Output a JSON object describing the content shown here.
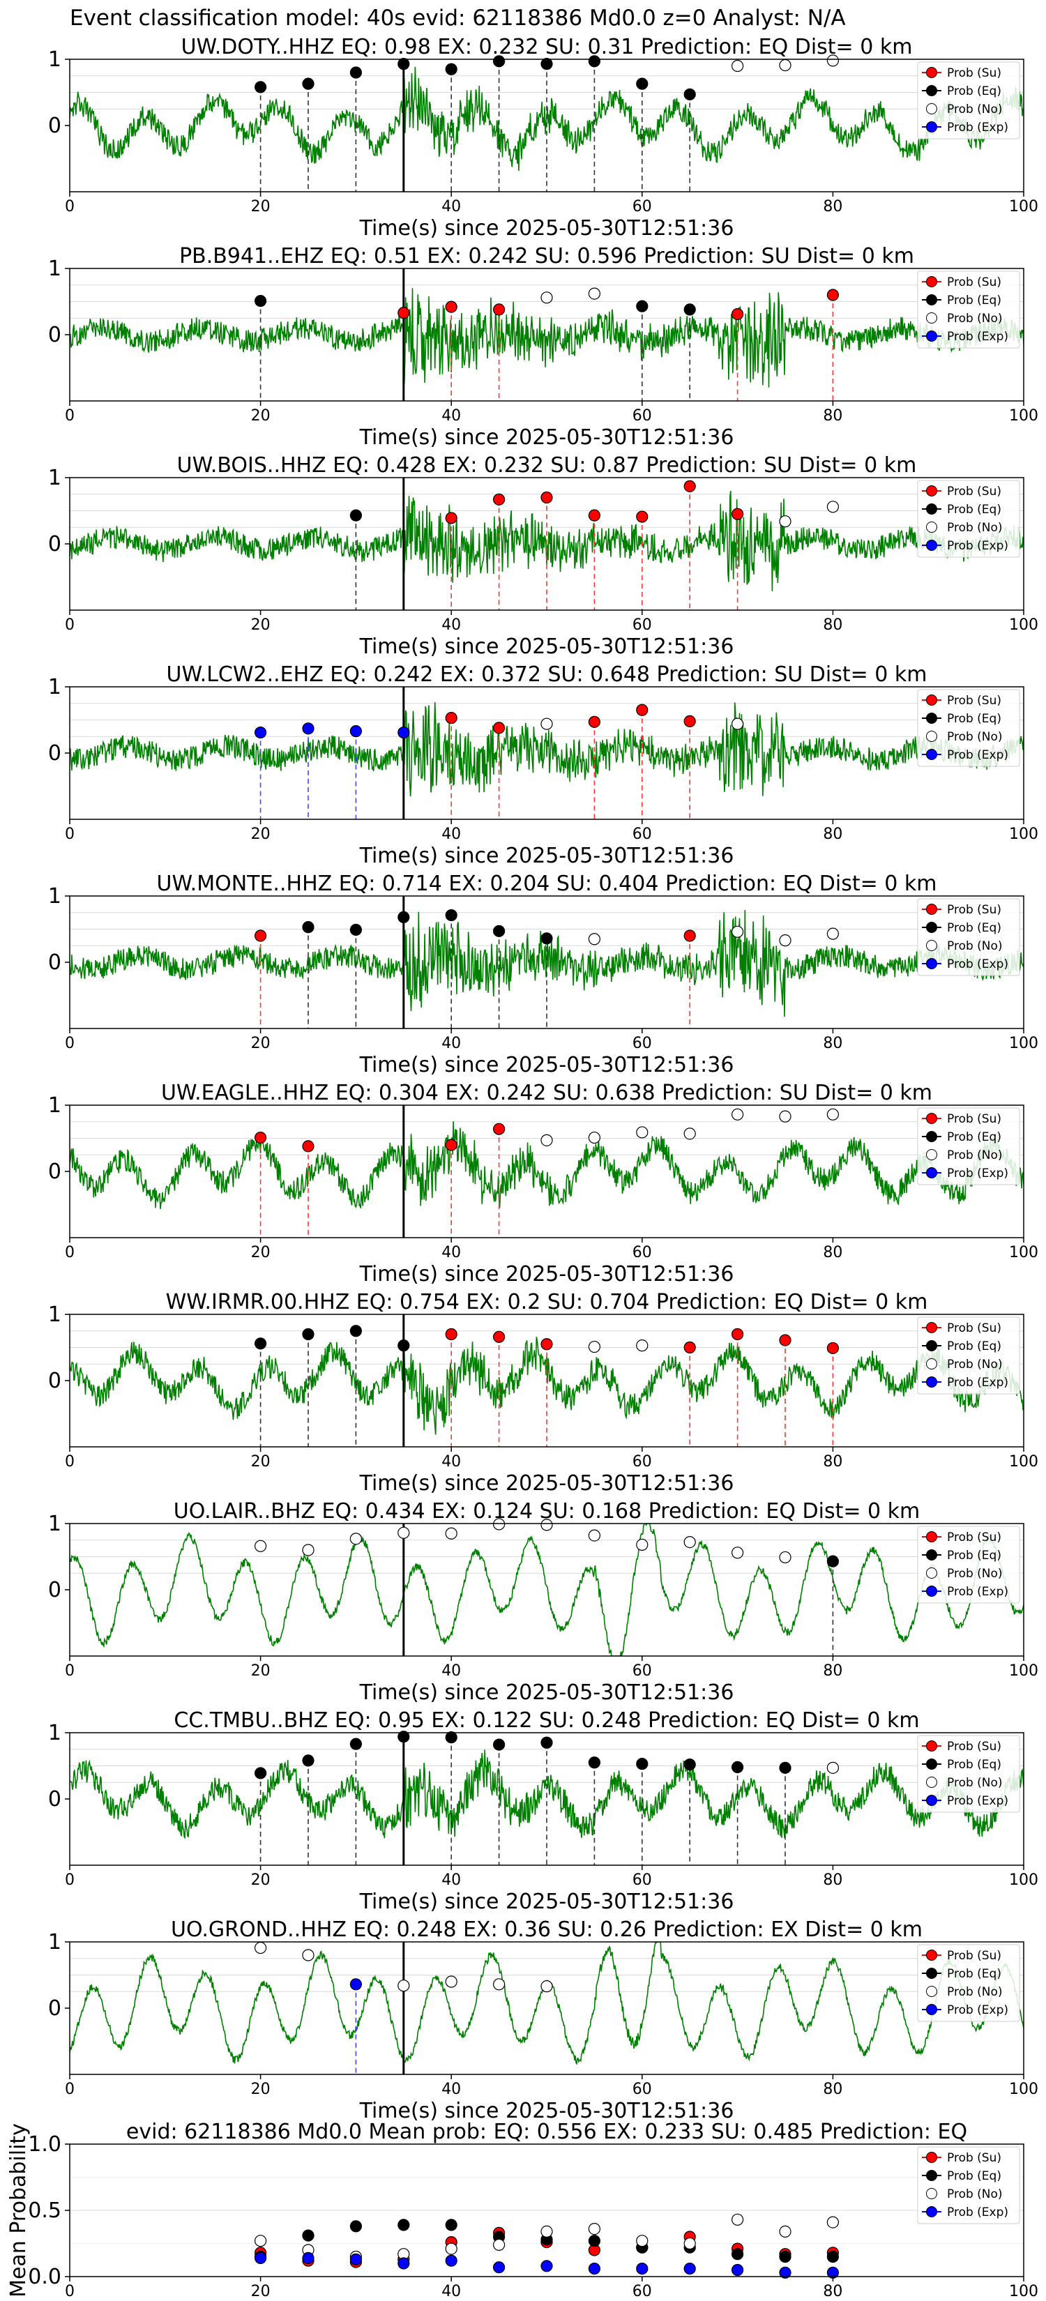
{
  "page": {
    "title": "Event classification model: 40s evid: 62118386 Md0.0 z=0 Analyst: N/A"
  },
  "legend_labels": [
    "Prob (Su)",
    "Prob (Eq)",
    "Prob (No)",
    "Prob (Exp)"
  ],
  "colors": {
    "su": "#ff0000",
    "eq": "#000000",
    "no": "#ffffff",
    "exp": "#0000ff",
    "waveform": "#008000",
    "grid": "#d9d9d9",
    "pick": "#000000"
  },
  "chart_data": [
    {
      "type": "line",
      "title": "UW.DOTY..HHZ   EQ: 0.98  EX: 0.232  SU: 0.31   Prediction: EQ    Dist= 0 km",
      "xlabel": "Time(s) since 2025-05-30T12:51:36",
      "xlim": [
        0,
        100
      ],
      "ylim": [
        -1,
        1
      ],
      "xticks": [
        "0",
        "20",
        "40",
        "60",
        "80",
        "100"
      ],
      "yticks": [
        "0",
        "1"
      ],
      "waveform_style": "mixed",
      "pick_time": 35,
      "points": [
        {
          "x": 20,
          "y": 0.58,
          "cls": "eq"
        },
        {
          "x": 25,
          "y": 0.63,
          "cls": "eq"
        },
        {
          "x": 30,
          "y": 0.8,
          "cls": "eq"
        },
        {
          "x": 35,
          "y": 0.93,
          "cls": "eq"
        },
        {
          "x": 40,
          "y": 0.85,
          "cls": "eq"
        },
        {
          "x": 45,
          "y": 0.97,
          "cls": "eq"
        },
        {
          "x": 50,
          "y": 0.93,
          "cls": "eq"
        },
        {
          "x": 55,
          "y": 0.97,
          "cls": "eq"
        },
        {
          "x": 60,
          "y": 0.63,
          "cls": "eq"
        },
        {
          "x": 65,
          "y": 0.47,
          "cls": "eq"
        },
        {
          "x": 70,
          "y": 0.9,
          "cls": "no"
        },
        {
          "x": 75,
          "y": 0.91,
          "cls": "no"
        },
        {
          "x": 80,
          "y": 0.98,
          "cls": "no"
        }
      ]
    },
    {
      "type": "line",
      "title": "PB.B941..EHZ   EQ: 0.51  EX: 0.242  SU: 0.596   Prediction: SU    Dist= 0 km",
      "xlabel": "Time(s) since 2025-05-30T12:51:36",
      "xlim": [
        0,
        100
      ],
      "ylim": [
        -1,
        1
      ],
      "xticks": [
        "0",
        "20",
        "40",
        "60",
        "80",
        "100"
      ],
      "yticks": [
        "0",
        "1"
      ],
      "waveform_style": "noisy",
      "pick_time": 35,
      "points": [
        {
          "x": 20,
          "y": 0.51,
          "cls": "eq"
        },
        {
          "x": 35,
          "y": 0.33,
          "cls": "su"
        },
        {
          "x": 40,
          "y": 0.42,
          "cls": "su"
        },
        {
          "x": 45,
          "y": 0.38,
          "cls": "su"
        },
        {
          "x": 50,
          "y": 0.56,
          "cls": "no"
        },
        {
          "x": 55,
          "y": 0.62,
          "cls": "no"
        },
        {
          "x": 60,
          "y": 0.43,
          "cls": "eq"
        },
        {
          "x": 65,
          "y": 0.38,
          "cls": "eq"
        },
        {
          "x": 70,
          "y": 0.31,
          "cls": "su"
        },
        {
          "x": 80,
          "y": 0.6,
          "cls": "su"
        }
      ]
    },
    {
      "type": "line",
      "title": "UW.BOIS..HHZ   EQ: 0.428  EX: 0.232  SU: 0.87   Prediction: SU    Dist= 0 km",
      "xlabel": "Time(s) since 2025-05-30T12:51:36",
      "xlim": [
        0,
        100
      ],
      "ylim": [
        -1,
        1
      ],
      "xticks": [
        "0",
        "20",
        "40",
        "60",
        "80",
        "100"
      ],
      "yticks": [
        "0",
        "1"
      ],
      "waveform_style": "noisy",
      "pick_time": 35,
      "points": [
        {
          "x": 30,
          "y": 0.43,
          "cls": "eq"
        },
        {
          "x": 40,
          "y": 0.39,
          "cls": "su"
        },
        {
          "x": 45,
          "y": 0.67,
          "cls": "su"
        },
        {
          "x": 50,
          "y": 0.7,
          "cls": "su"
        },
        {
          "x": 55,
          "y": 0.43,
          "cls": "su"
        },
        {
          "x": 60,
          "y": 0.41,
          "cls": "su"
        },
        {
          "x": 65,
          "y": 0.87,
          "cls": "su"
        },
        {
          "x": 70,
          "y": 0.45,
          "cls": "su"
        },
        {
          "x": 75,
          "y": 0.34,
          "cls": "no"
        },
        {
          "x": 80,
          "y": 0.56,
          "cls": "no"
        }
      ]
    },
    {
      "type": "line",
      "title": "UW.LCW2..EHZ   EQ: 0.242  EX: 0.372  SU: 0.648   Prediction: SU    Dist= 0 km",
      "xlabel": "Time(s) since 2025-05-30T12:51:36",
      "xlim": [
        0,
        100
      ],
      "ylim": [
        -1,
        1
      ],
      "xticks": [
        "0",
        "20",
        "40",
        "60",
        "80",
        "100"
      ],
      "yticks": [
        "0",
        "1"
      ],
      "waveform_style": "noisy",
      "pick_time": 35,
      "points": [
        {
          "x": 20,
          "y": 0.31,
          "cls": "exp"
        },
        {
          "x": 25,
          "y": 0.37,
          "cls": "exp"
        },
        {
          "x": 30,
          "y": 0.33,
          "cls": "exp"
        },
        {
          "x": 35,
          "y": 0.31,
          "cls": "exp"
        },
        {
          "x": 40,
          "y": 0.53,
          "cls": "su"
        },
        {
          "x": 45,
          "y": 0.38,
          "cls": "su"
        },
        {
          "x": 50,
          "y": 0.44,
          "cls": "no"
        },
        {
          "x": 55,
          "y": 0.47,
          "cls": "su"
        },
        {
          "x": 60,
          "y": 0.65,
          "cls": "su"
        },
        {
          "x": 65,
          "y": 0.48,
          "cls": "su"
        },
        {
          "x": 70,
          "y": 0.44,
          "cls": "no"
        }
      ]
    },
    {
      "type": "line",
      "title": "UW.MONTE..HHZ   EQ: 0.714  EX: 0.204  SU: 0.404   Prediction: EQ    Dist= 0 km",
      "xlabel": "Time(s) since 2025-05-30T12:51:36",
      "xlim": [
        0,
        100
      ],
      "ylim": [
        -1,
        1
      ],
      "xticks": [
        "0",
        "20",
        "40",
        "60",
        "80",
        "100"
      ],
      "yticks": [
        "0",
        "1"
      ],
      "waveform_style": "noisy",
      "pick_time": 35,
      "points": [
        {
          "x": 20,
          "y": 0.4,
          "cls": "su"
        },
        {
          "x": 25,
          "y": 0.53,
          "cls": "eq"
        },
        {
          "x": 30,
          "y": 0.49,
          "cls": "eq"
        },
        {
          "x": 35,
          "y": 0.68,
          "cls": "eq"
        },
        {
          "x": 40,
          "y": 0.71,
          "cls": "eq"
        },
        {
          "x": 45,
          "y": 0.47,
          "cls": "eq"
        },
        {
          "x": 50,
          "y": 0.36,
          "cls": "eq"
        },
        {
          "x": 55,
          "y": 0.35,
          "cls": "no"
        },
        {
          "x": 65,
          "y": 0.4,
          "cls": "su"
        },
        {
          "x": 70,
          "y": 0.46,
          "cls": "no"
        },
        {
          "x": 75,
          "y": 0.33,
          "cls": "no"
        },
        {
          "x": 80,
          "y": 0.43,
          "cls": "no"
        }
      ]
    },
    {
      "type": "line",
      "title": "UW.EAGLE..HHZ   EQ: 0.304  EX: 0.242  SU: 0.638   Prediction: SU    Dist= 0 km",
      "xlabel": "Time(s) since 2025-05-30T12:51:36",
      "xlim": [
        0,
        100
      ],
      "ylim": [
        -1,
        1
      ],
      "xticks": [
        "0",
        "20",
        "40",
        "60",
        "80",
        "100"
      ],
      "yticks": [
        "0",
        "1"
      ],
      "waveform_style": "mixed",
      "pick_time": 35,
      "points": [
        {
          "x": 20,
          "y": 0.51,
          "cls": "su"
        },
        {
          "x": 25,
          "y": 0.38,
          "cls": "su"
        },
        {
          "x": 40,
          "y": 0.4,
          "cls": "su"
        },
        {
          "x": 45,
          "y": 0.64,
          "cls": "su"
        },
        {
          "x": 50,
          "y": 0.47,
          "cls": "no"
        },
        {
          "x": 55,
          "y": 0.51,
          "cls": "no"
        },
        {
          "x": 60,
          "y": 0.59,
          "cls": "no"
        },
        {
          "x": 65,
          "y": 0.57,
          "cls": "no"
        },
        {
          "x": 70,
          "y": 0.86,
          "cls": "no"
        },
        {
          "x": 75,
          "y": 0.83,
          "cls": "no"
        },
        {
          "x": 80,
          "y": 0.86,
          "cls": "no"
        }
      ]
    },
    {
      "type": "line",
      "title": "WW.IRMR.00.HHZ   EQ: 0.754  EX: 0.2  SU: 0.704   Prediction: EQ    Dist= 0 km",
      "xlabel": "Time(s) since 2025-05-30T12:51:36",
      "xlim": [
        0,
        100
      ],
      "ylim": [
        -1,
        1
      ],
      "xticks": [
        "0",
        "20",
        "40",
        "60",
        "80",
        "100"
      ],
      "yticks": [
        "0",
        "1"
      ],
      "waveform_style": "mixed",
      "pick_time": 35,
      "points": [
        {
          "x": 20,
          "y": 0.56,
          "cls": "eq"
        },
        {
          "x": 25,
          "y": 0.7,
          "cls": "eq"
        },
        {
          "x": 30,
          "y": 0.75,
          "cls": "eq"
        },
        {
          "x": 35,
          "y": 0.53,
          "cls": "eq"
        },
        {
          "x": 40,
          "y": 0.7,
          "cls": "su"
        },
        {
          "x": 45,
          "y": 0.66,
          "cls": "su"
        },
        {
          "x": 50,
          "y": 0.55,
          "cls": "su"
        },
        {
          "x": 55,
          "y": 0.51,
          "cls": "no"
        },
        {
          "x": 60,
          "y": 0.53,
          "cls": "no"
        },
        {
          "x": 65,
          "y": 0.5,
          "cls": "su"
        },
        {
          "x": 70,
          "y": 0.7,
          "cls": "su"
        },
        {
          "x": 75,
          "y": 0.61,
          "cls": "su"
        },
        {
          "x": 80,
          "y": 0.49,
          "cls": "su"
        }
      ]
    },
    {
      "type": "line",
      "title": "UO.LAIR..BHZ   EQ: 0.434  EX: 0.124  SU: 0.168   Prediction: EQ    Dist= 0 km",
      "xlabel": "Time(s) since 2025-05-30T12:51:36",
      "xlim": [
        0,
        100
      ],
      "ylim": [
        -1,
        1
      ],
      "xticks": [
        "0",
        "20",
        "40",
        "60",
        "80",
        "100"
      ],
      "yticks": [
        "0",
        "1"
      ],
      "waveform_style": "smooth",
      "pick_time": 35,
      "points": [
        {
          "x": 20,
          "y": 0.66,
          "cls": "no"
        },
        {
          "x": 25,
          "y": 0.6,
          "cls": "no"
        },
        {
          "x": 30,
          "y": 0.77,
          "cls": "no"
        },
        {
          "x": 35,
          "y": 0.86,
          "cls": "no"
        },
        {
          "x": 40,
          "y": 0.85,
          "cls": "no"
        },
        {
          "x": 45,
          "y": 0.99,
          "cls": "no"
        },
        {
          "x": 50,
          "y": 0.98,
          "cls": "no"
        },
        {
          "x": 55,
          "y": 0.82,
          "cls": "no"
        },
        {
          "x": 60,
          "y": 0.68,
          "cls": "no"
        },
        {
          "x": 65,
          "y": 0.72,
          "cls": "no"
        },
        {
          "x": 70,
          "y": 0.56,
          "cls": "no"
        },
        {
          "x": 75,
          "y": 0.49,
          "cls": "no"
        },
        {
          "x": 80,
          "y": 0.43,
          "cls": "eq"
        }
      ]
    },
    {
      "type": "line",
      "title": "CC.TMBU..BHZ   EQ: 0.95  EX: 0.122  SU: 0.248   Prediction: EQ    Dist= 0 km",
      "xlabel": "Time(s) since 2025-05-30T12:51:36",
      "xlim": [
        0,
        100
      ],
      "ylim": [
        -1,
        1
      ],
      "xticks": [
        "0",
        "20",
        "40",
        "60",
        "80",
        "100"
      ],
      "yticks": [
        "0",
        "1"
      ],
      "waveform_style": "mixed",
      "pick_time": 35,
      "points": [
        {
          "x": 20,
          "y": 0.39,
          "cls": "eq"
        },
        {
          "x": 25,
          "y": 0.58,
          "cls": "eq"
        },
        {
          "x": 30,
          "y": 0.83,
          "cls": "eq"
        },
        {
          "x": 35,
          "y": 0.94,
          "cls": "eq"
        },
        {
          "x": 40,
          "y": 0.93,
          "cls": "eq"
        },
        {
          "x": 45,
          "y": 0.82,
          "cls": "eq"
        },
        {
          "x": 50,
          "y": 0.85,
          "cls": "eq"
        },
        {
          "x": 55,
          "y": 0.55,
          "cls": "eq"
        },
        {
          "x": 60,
          "y": 0.53,
          "cls": "eq"
        },
        {
          "x": 65,
          "y": 0.52,
          "cls": "eq"
        },
        {
          "x": 70,
          "y": 0.48,
          "cls": "eq"
        },
        {
          "x": 75,
          "y": 0.47,
          "cls": "eq"
        },
        {
          "x": 80,
          "y": 0.47,
          "cls": "no"
        }
      ]
    },
    {
      "type": "line",
      "title": "UO.GROND..HHZ   EQ: 0.248  EX: 0.36  SU: 0.26   Prediction: EX    Dist= 0 km",
      "xlabel": "Time(s) since 2025-05-30T12:51:36",
      "xlim": [
        0,
        100
      ],
      "ylim": [
        -1,
        1
      ],
      "xticks": [
        "0",
        "20",
        "40",
        "60",
        "80",
        "100"
      ],
      "yticks": [
        "0",
        "1"
      ],
      "waveform_style": "smooth",
      "pick_time": 35,
      "points": [
        {
          "x": 20,
          "y": 0.91,
          "cls": "no"
        },
        {
          "x": 25,
          "y": 0.8,
          "cls": "no"
        },
        {
          "x": 30,
          "y": 0.36,
          "cls": "exp"
        },
        {
          "x": 35,
          "y": 0.34,
          "cls": "no"
        },
        {
          "x": 40,
          "y": 0.4,
          "cls": "no"
        },
        {
          "x": 45,
          "y": 0.36,
          "cls": "no"
        },
        {
          "x": 50,
          "y": 0.33,
          "cls": "no"
        }
      ]
    },
    {
      "type": "scatter",
      "title": "evid: 62118386  Md0.0   Mean prob:   EQ: 0.556  EX: 0.233  SU: 0.485   Prediction: EQ",
      "ylabel": "Mean Probability",
      "xlim": [
        0,
        100
      ],
      "ylim": [
        0,
        1
      ],
      "xticks": [
        "0",
        "20",
        "40",
        "60",
        "80",
        "100"
      ],
      "yticks": [
        "0.0",
        "0.5",
        "1.0"
      ],
      "ytick_values": [
        0,
        0.5,
        1
      ],
      "x": [
        20,
        25,
        30,
        35,
        40,
        45,
        50,
        55,
        60,
        65,
        70,
        75,
        80
      ],
      "series": [
        {
          "key": "su",
          "values": [
            0.18,
            0.12,
            0.11,
            0.13,
            0.26,
            0.33,
            0.26,
            0.2,
            0.22,
            0.3,
            0.21,
            0.17,
            0.18
          ]
        },
        {
          "key": "eq",
          "values": [
            0.15,
            0.31,
            0.38,
            0.39,
            0.39,
            0.3,
            0.28,
            0.27,
            0.22,
            0.22,
            0.17,
            0.15,
            0.15
          ]
        },
        {
          "key": "no",
          "values": [
            0.27,
            0.2,
            0.15,
            0.17,
            0.21,
            0.24,
            0.34,
            0.36,
            0.27,
            0.25,
            0.43,
            0.34,
            0.41
          ]
        },
        {
          "key": "exp",
          "values": [
            0.14,
            0.14,
            0.13,
            0.1,
            0.12,
            0.07,
            0.08,
            0.06,
            0.06,
            0.06,
            0.05,
            0.03,
            0.03
          ]
        }
      ]
    }
  ]
}
